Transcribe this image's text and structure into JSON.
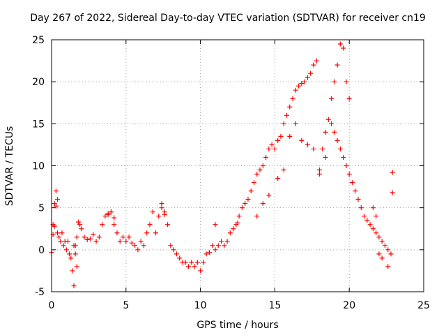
{
  "chart_data": {
    "type": "scatter",
    "title": "Day 267 of 2022, Sidereal Day-to-day VTEC variation (SDTVAR) for receiver cn19",
    "xlabel": "GPS time / hours",
    "ylabel": "SDTVAR / TECUs",
    "xlim": [
      0,
      25
    ],
    "ylim": [
      -5,
      25
    ],
    "xticks": [
      "0",
      "5",
      "10",
      "15",
      "20",
      "25"
    ],
    "yticks": [
      "-5",
      "0",
      "5",
      "10",
      "15",
      "20",
      "25"
    ],
    "grid": true,
    "marker": "plus",
    "color": "#ff0000",
    "series": [
      {
        "name": "SDTVAR",
        "x": [
          0.0,
          0.1,
          0.2,
          0.3,
          0.4,
          0.5,
          0.6,
          0.7,
          0.8,
          0.9,
          1.0,
          1.1,
          1.2,
          1.3,
          1.4,
          1.5,
          1.6,
          1.7,
          1.8,
          1.9,
          2.0,
          2.2,
          2.4,
          2.6,
          2.8,
          3.0,
          3.2,
          3.4,
          3.6,
          3.8,
          4.0,
          4.2,
          4.4,
          4.6,
          4.8,
          5.0,
          5.2,
          5.4,
          5.6,
          5.8,
          6.0,
          6.2,
          6.4,
          6.6,
          6.8,
          7.0,
          7.2,
          7.4,
          7.6,
          7.8,
          8.0,
          8.2,
          8.4,
          8.6,
          8.8,
          9.0,
          9.2,
          9.4,
          9.6,
          9.8,
          10.0,
          10.2,
          10.4,
          10.6,
          10.8,
          11.0,
          11.2,
          11.4,
          11.6,
          11.8,
          12.0,
          12.2,
          12.4,
          12.6,
          12.8,
          13.0,
          13.2,
          13.4,
          13.6,
          13.8,
          14.0,
          14.2,
          14.4,
          14.6,
          14.8,
          15.0,
          15.2,
          15.4,
          15.6,
          15.8,
          16.0,
          16.2,
          16.4,
          16.6,
          16.8,
          17.0,
          17.2,
          17.4,
          17.6,
          17.8,
          18.0,
          18.2,
          18.4,
          18.6,
          18.8,
          19.0,
          19.2,
          19.4,
          19.6,
          19.8,
          20.0,
          20.2,
          20.4,
          20.6,
          20.8,
          21.0,
          21.2,
          21.4,
          21.6,
          21.8,
          22.0,
          22.2,
          22.4,
          22.6,
          22.8,
          0.1,
          0.2,
          0.3,
          0.4,
          1.5,
          1.6,
          1.7,
          3.8,
          4.0,
          4.2,
          7.4,
          7.6,
          11.0,
          12.5,
          13.8,
          14.2,
          14.6,
          15.2,
          15.6,
          16.0,
          16.4,
          16.8,
          17.2,
          17.6,
          18.0,
          18.4,
          18.8,
          19.0,
          19.2,
          19.4,
          19.6,
          19.8,
          20.0,
          21.6,
          21.8,
          22.0,
          22.2,
          22.6,
          22.9,
          22.9
        ],
        "y": [
          -0.3,
          3.0,
          5.5,
          7.0,
          2.0,
          1.5,
          1.0,
          2.0,
          0.5,
          1.0,
          0.0,
          1.0,
          -0.5,
          -1.0,
          -2.5,
          -4.3,
          0.5,
          1.5,
          3.3,
          3.0,
          2.5,
          1.5,
          1.2,
          1.3,
          1.8,
          1.0,
          1.5,
          3.0,
          4.0,
          4.3,
          4.5,
          3.0,
          2.0,
          1.0,
          1.5,
          1.0,
          1.5,
          0.8,
          0.5,
          0.0,
          1.0,
          0.5,
          2.0,
          3.0,
          4.5,
          2.0,
          4.0,
          5.5,
          4.5,
          3.0,
          0.5,
          0.0,
          -0.5,
          -1.0,
          -1.5,
          -1.5,
          -2.0,
          -1.5,
          -2.0,
          -1.5,
          -2.5,
          -1.5,
          -0.5,
          -0.3,
          0.5,
          0.0,
          0.5,
          1.0,
          0.5,
          1.0,
          2.0,
          2.5,
          3.0,
          4.0,
          5.0,
          5.5,
          6.0,
          7.0,
          8.0,
          9.0,
          9.5,
          10.0,
          11.0,
          12.0,
          12.5,
          12.0,
          13.0,
          13.5,
          15.0,
          16.0,
          17.0,
          18.0,
          19.0,
          19.5,
          19.8,
          20.0,
          20.5,
          21.0,
          22.0,
          22.5,
          9.5,
          12.0,
          14.0,
          15.5,
          15.0,
          14.0,
          13.0,
          12.0,
          11.0,
          10.0,
          9.0,
          8.0,
          7.0,
          6.0,
          5.0,
          4.0,
          3.5,
          3.0,
          2.5,
          2.0,
          1.5,
          1.0,
          0.5,
          0.0,
          -0.5,
          1.8,
          2.8,
          5.2,
          6.0,
          0.5,
          -0.5,
          -2.0,
          4.2,
          4.5,
          3.8,
          5.0,
          4.2,
          3.0,
          3.2,
          4.0,
          5.5,
          6.5,
          8.5,
          9.5,
          13.5,
          15.0,
          13.0,
          12.5,
          12.0,
          9.0,
          11.0,
          18.0,
          20.0,
          22.0,
          24.5,
          24.0,
          20.0,
          18.0,
          5.0,
          4.0,
          -0.5,
          -1.0,
          -2.0,
          9.2,
          6.8
        ]
      }
    ]
  }
}
